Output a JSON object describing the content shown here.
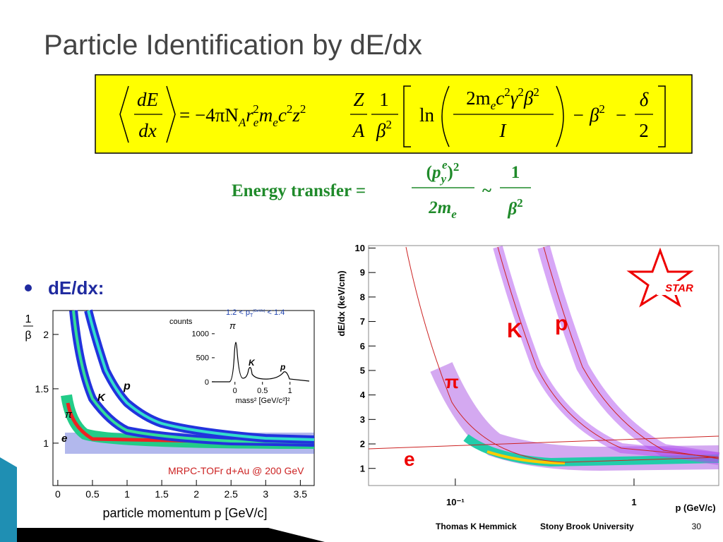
{
  "title": "Particle Identification by dE/dx",
  "formula": [
    "dE",
    "dx",
    "= −4πN",
    "A",
    "r",
    "e",
    "2",
    "m",
    "e",
    "c",
    "2",
    "z",
    "2",
    "Z",
    "A",
    "1",
    "β",
    "2",
    "ln",
    "2m",
    "e",
    "c",
    "2",
    "γ",
    "2",
    "β",
    "2",
    "I",
    "− β",
    "2",
    "−",
    "δ",
    "2"
  ],
  "energy_transfer": {
    "label": "Energy transfer =",
    "numerator": [
      "(",
      "p",
      "y",
      "e",
      ")",
      "2"
    ],
    "denominator": [
      "2m",
      "e"
    ],
    "approx": "~",
    "rhs_numerator": "1",
    "rhs_denominator": [
      "β",
      "2"
    ]
  },
  "bullet": "dE/dx:",
  "left_plot": {
    "y_label_num": "1",
    "y_label_den": "β",
    "ylim": [
      0.61,
      2.22
    ],
    "yticks": [
      1,
      1.5,
      2
    ],
    "xlim": [
      -0.07,
      3.7
    ],
    "xticks": [
      0,
      0.5,
      1,
      1.5,
      2,
      2.5,
      3,
      3.5
    ],
    "x_label": "particle momentum p [GeV/c]",
    "annotation": "MRPC-TOFr d+Au @ 200 GeV",
    "species": [
      "π",
      "K",
      "p",
      "e"
    ],
    "inset": {
      "y_label": "counts",
      "title": "1.2 < p",
      "title_sub": "T",
      "title_sup": "(GeV/c)",
      "title_end": " < 1.4",
      "ylim": [
        -60,
        1380
      ],
      "yticks": [
        0,
        500,
        1000
      ],
      "xlim": [
        -0.42,
        1.35
      ],
      "xticks": [
        0,
        0.5,
        1
      ],
      "x_label": "mass² [GeV/c²]²",
      "species": [
        "π",
        "K",
        "p"
      ]
    }
  },
  "right_plot": {
    "y_label": "dE/dx  (keV/cm)",
    "ylim": [
      0.3,
      10.1
    ],
    "yticks": [
      1,
      2,
      3,
      4,
      5,
      6,
      7,
      8,
      9,
      10
    ],
    "xlim": [
      0.0327,
      2.98
    ],
    "log_x": true,
    "xticks": [
      {
        "value": 0.1,
        "label": "10⁻¹"
      },
      1
    ],
    "x_label": "p  (GeV/c)",
    "species": [
      "K",
      "p",
      "π",
      "e"
    ],
    "logo": "STAR"
  },
  "footer": {
    "author": "Thomas K Hemmick",
    "affiliation": "Stony Brook University",
    "page": "30"
  }
}
